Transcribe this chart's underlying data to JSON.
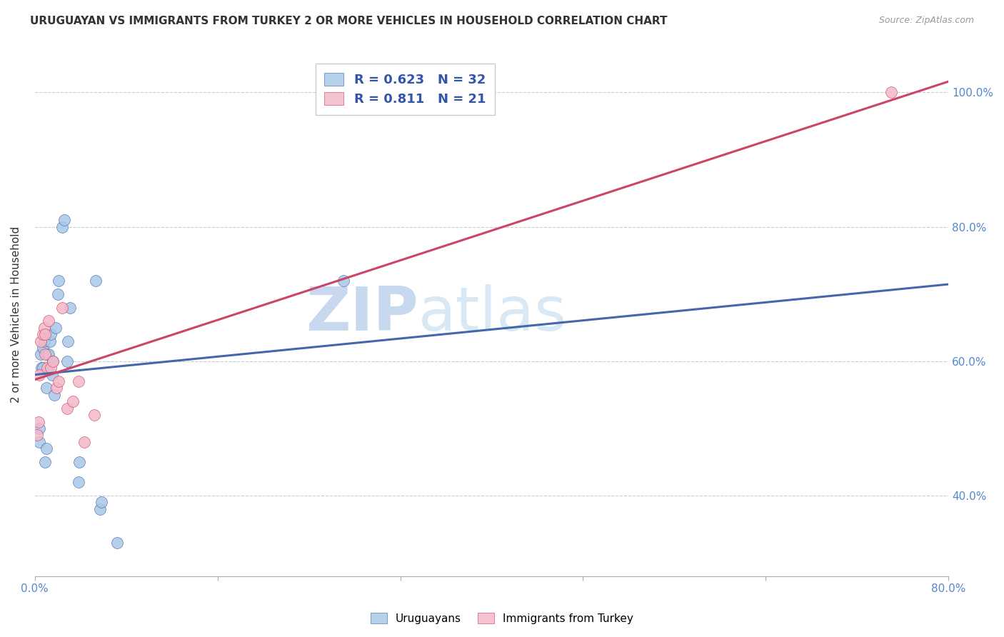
{
  "title": "URUGUAYAN VS IMMIGRANTS FROM TURKEY 2 OR MORE VEHICLES IN HOUSEHOLD CORRELATION CHART",
  "source": "Source: ZipAtlas.com",
  "ylabel": "2 or more Vehicles in Household",
  "xlabel_uruguayans": "Uruguayans",
  "xlabel_turkey": "Immigrants from Turkey",
  "xmin": 0.0,
  "xmax": 0.8,
  "ymin": 0.28,
  "ymax": 1.06,
  "ytick_labels": [
    "40.0%",
    "60.0%",
    "80.0%",
    "100.0%"
  ],
  "ytick_values": [
    0.4,
    0.6,
    0.8,
    1.0
  ],
  "xtick_labels": [
    "0.0%",
    "",
    "",
    "",
    "",
    "80.0%"
  ],
  "xtick_values": [
    0.0,
    0.16,
    0.32,
    0.48,
    0.64,
    0.8
  ],
  "uruguayan_x": [
    0.004,
    0.004,
    0.005,
    0.006,
    0.007,
    0.007,
    0.008,
    0.009,
    0.01,
    0.01,
    0.011,
    0.012,
    0.013,
    0.014,
    0.015,
    0.016,
    0.017,
    0.018,
    0.02,
    0.021,
    0.024,
    0.026,
    0.028,
    0.029,
    0.031,
    0.038,
    0.039,
    0.053,
    0.057,
    0.058,
    0.072,
    0.27
  ],
  "uruguayan_y": [
    0.48,
    0.5,
    0.61,
    0.59,
    0.62,
    0.59,
    0.63,
    0.45,
    0.47,
    0.56,
    0.61,
    0.61,
    0.63,
    0.64,
    0.58,
    0.6,
    0.55,
    0.65,
    0.7,
    0.72,
    0.8,
    0.81,
    0.6,
    0.63,
    0.68,
    0.42,
    0.45,
    0.72,
    0.38,
    0.39,
    0.33,
    0.72
  ],
  "turkey_x": [
    0.002,
    0.003,
    0.004,
    0.005,
    0.007,
    0.008,
    0.009,
    0.009,
    0.011,
    0.012,
    0.014,
    0.016,
    0.019,
    0.021,
    0.024,
    0.028,
    0.033,
    0.038,
    0.043,
    0.052,
    0.75
  ],
  "turkey_y": [
    0.49,
    0.51,
    0.58,
    0.63,
    0.64,
    0.65,
    0.61,
    0.64,
    0.59,
    0.66,
    0.59,
    0.6,
    0.56,
    0.57,
    0.68,
    0.53,
    0.54,
    0.57,
    0.48,
    0.52,
    1.0
  ],
  "uruguayan_color": "#a8c8e8",
  "turkey_color": "#f4b8c8",
  "line_uruguayan_color": "#4466aa",
  "line_turkey_color": "#cc4466",
  "R_uruguayan": 0.623,
  "N_uruguayan": 32,
  "R_turkey": 0.811,
  "N_turkey": 21,
  "legend_label_uruguayan": "Uruguayans",
  "legend_label_turkey": "Immigrants from Turkey",
  "watermark_zip": "ZIP",
  "watermark_atlas": "atlas",
  "background_color": "#ffffff",
  "grid_color": "#cccccc",
  "legend_text_color": "#3355aa"
}
